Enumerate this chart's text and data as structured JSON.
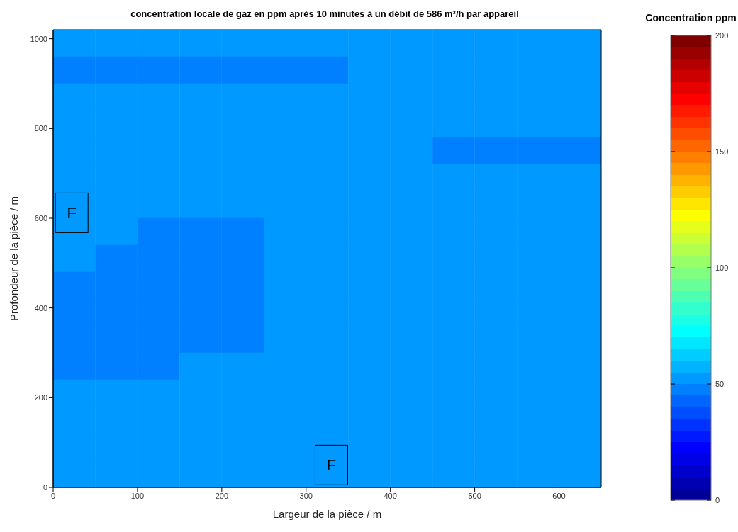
{
  "chart_data": {
    "type": "heatmap",
    "title": "concentration locale de gaz en ppm après 10 minutes à un débit de 586 m³/h par appareil",
    "xlabel": "Largeur de la pièce / m",
    "ylabel": "Profondeur de la pièce / m",
    "clabel": "Concentration ppm",
    "xlim": [
      0,
      650
    ],
    "ylim": [
      0,
      1020
    ],
    "xticks": [
      0,
      100,
      200,
      300,
      400,
      500,
      600
    ],
    "yticks": [
      0,
      200,
      400,
      600,
      800,
      1000
    ],
    "clim": [
      0,
      200
    ],
    "cticks": [
      0,
      50,
      100,
      150,
      200
    ],
    "cells": [
      [
        52.5,
        52.5,
        52.5,
        52.5,
        52.5,
        52.5,
        52.5,
        52.5,
        52.5,
        52.5,
        52.5,
        52.5,
        52.5
      ],
      [
        47.5,
        47.5,
        47.5,
        47.5,
        47.5,
        47.5,
        47.5,
        52.5,
        52.5,
        52.5,
        52.5,
        52.5,
        52.5
      ],
      [
        52.5,
        52.5,
        52.5,
        52.5,
        52.5,
        52.5,
        52.5,
        52.5,
        52.5,
        52.5,
        52.5,
        52.5,
        52.5
      ],
      [
        52.5,
        52.5,
        52.5,
        52.5,
        52.5,
        52.5,
        52.5,
        52.5,
        52.5,
        52.5,
        52.5,
        52.5,
        52.5
      ],
      [
        52.5,
        52.5,
        52.5,
        52.5,
        52.5,
        52.5,
        52.5,
        52.5,
        52.5,
        47.5,
        47.5,
        47.5,
        47.5
      ],
      [
        52.5,
        52.5,
        52.5,
        52.5,
        52.5,
        52.5,
        52.5,
        52.5,
        52.5,
        52.5,
        52.5,
        52.5,
        52.5
      ],
      [
        52.5,
        52.5,
        52.5,
        52.5,
        52.5,
        52.5,
        52.5,
        52.5,
        52.5,
        52.5,
        52.5,
        52.5,
        52.5
      ],
      [
        52.5,
        52.5,
        47.5,
        47.5,
        47.5,
        52.5,
        52.5,
        52.5,
        52.5,
        52.5,
        52.5,
        52.5,
        52.5
      ],
      [
        52.5,
        47.5,
        47.5,
        47.5,
        47.5,
        52.5,
        52.5,
        52.5,
        52.5,
        52.5,
        52.5,
        52.5,
        52.5
      ],
      [
        47.5,
        47.5,
        47.5,
        47.5,
        47.5,
        52.5,
        52.5,
        52.5,
        52.5,
        52.5,
        52.5,
        52.5,
        52.5
      ],
      [
        47.5,
        47.5,
        47.5,
        47.5,
        47.5,
        52.5,
        52.5,
        52.5,
        52.5,
        52.5,
        52.5,
        52.5,
        52.5
      ],
      [
        47.5,
        47.5,
        47.5,
        47.5,
        47.5,
        52.5,
        52.5,
        52.5,
        52.5,
        52.5,
        52.5,
        52.5,
        52.5
      ],
      [
        47.5,
        47.5,
        47.5,
        52.5,
        52.5,
        52.5,
        52.5,
        52.5,
        52.5,
        52.5,
        52.5,
        52.5,
        52.5
      ],
      [
        52.5,
        52.5,
        52.5,
        52.5,
        52.5,
        52.5,
        52.5,
        52.5,
        52.5,
        52.5,
        52.5,
        52.5,
        52.5
      ],
      [
        52.5,
        52.5,
        52.5,
        52.5,
        52.5,
        52.5,
        52.5,
        52.5,
        52.5,
        52.5,
        52.5,
        52.5,
        52.5
      ],
      [
        52.5,
        52.5,
        52.5,
        52.5,
        52.5,
        52.5,
        52.5,
        52.5,
        52.5,
        52.5,
        52.5,
        52.5,
        52.5
      ],
      [
        52.5,
        52.5,
        52.5,
        52.5,
        52.5,
        52.5,
        52.5,
        52.5,
        52.5,
        52.5,
        52.5,
        52.5,
        52.5
      ]
    ],
    "annotations": [
      "F",
      "F"
    ]
  }
}
